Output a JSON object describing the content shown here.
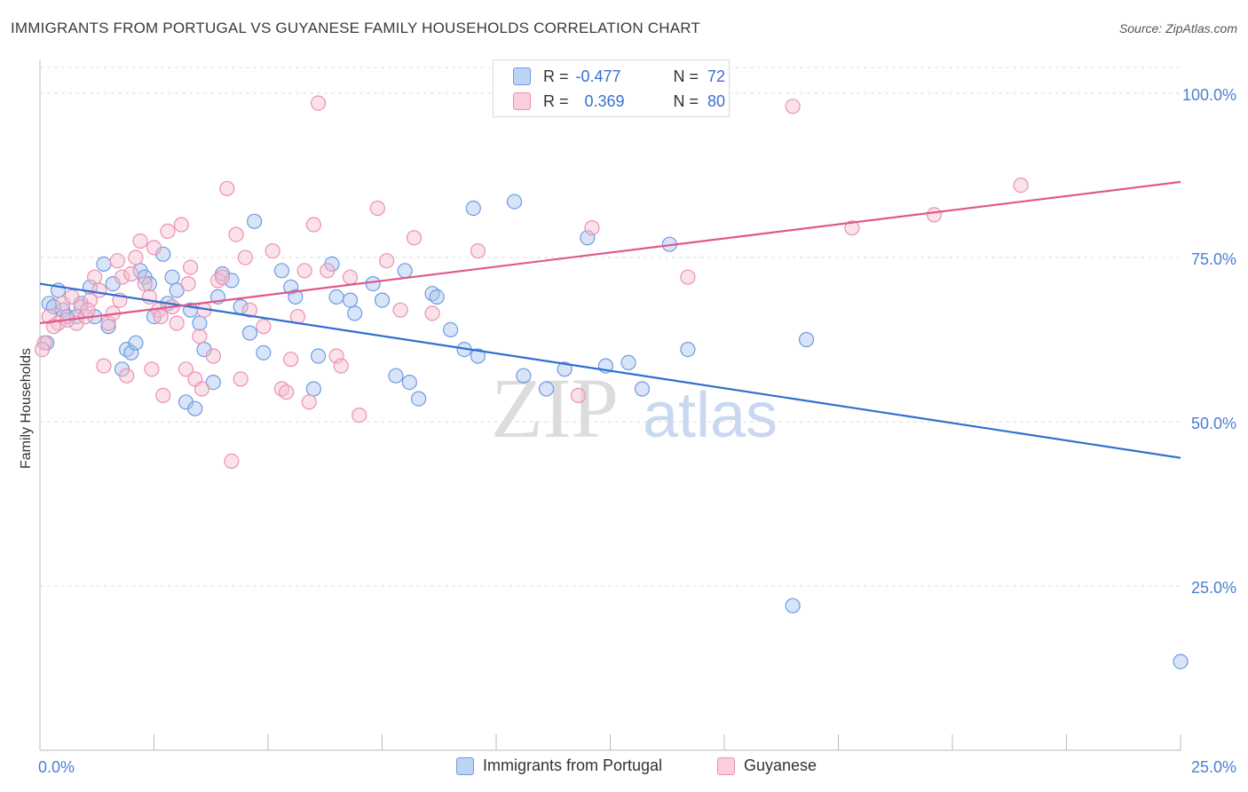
{
  "header": {
    "title": "IMMIGRANTS FROM PORTUGAL VS GUYANESE FAMILY HOUSEHOLDS CORRELATION CHART",
    "source": "Source: ZipAtlas.com"
  },
  "watermark": {
    "zip": "ZIP",
    "atlas": "atlas"
  },
  "colors": {
    "blue_fill": "#a9c4ee",
    "blue_stroke": "#6f9be0",
    "blue_line": "#2f6fd0",
    "pink_fill": "#f6bcd0",
    "pink_stroke": "#e992b0",
    "pink_line": "#e0588a",
    "tick_label": "#4a7fd4",
    "grid": "#dddddd"
  },
  "legend": {
    "rows": [
      {
        "r_label": "R =",
        "r_value": "-0.477",
        "n_label": "N =",
        "n_value": "72"
      },
      {
        "r_label": "R =",
        "r_value": "0.369",
        "n_label": "N =",
        "n_value": "80"
      }
    ]
  },
  "bottom_legend": [
    "Immigrants from Portugal",
    "Guyanese"
  ],
  "chart_data": {
    "type": "scatter",
    "title": "IMMIGRANTS FROM PORTUGAL VS GUYANESE FAMILY HOUSEHOLDS CORRELATION CHART",
    "xlabel": "",
    "ylabel": "Family Households",
    "xlim": [
      0,
      25
    ],
    "ylim": [
      0,
      105
    ],
    "x_tick_labels": [
      "0.0%",
      "25.0%"
    ],
    "y_ticks": [
      25,
      50,
      75,
      100
    ],
    "y_tick_labels": [
      "25.0%",
      "50.0%",
      "75.0%",
      "100.0%"
    ],
    "grid": true,
    "legend_position": "top-center",
    "series": [
      {
        "name": "Immigrants from Portugal",
        "color": "#a9c4ee",
        "trend": {
          "x": [
            0,
            25
          ],
          "y": [
            71.0,
            44.5
          ]
        },
        "points": [
          [
            0.2,
            68
          ],
          [
            0.4,
            70
          ],
          [
            0.5,
            67
          ],
          [
            0.6,
            66
          ],
          [
            0.8,
            66
          ],
          [
            0.9,
            68
          ],
          [
            1.1,
            70.5
          ],
          [
            1.2,
            66
          ],
          [
            1.4,
            74
          ],
          [
            1.5,
            64.5
          ],
          [
            1.6,
            71
          ],
          [
            1.8,
            58
          ],
          [
            1.9,
            61
          ],
          [
            2.0,
            60.5
          ],
          [
            2.1,
            62
          ],
          [
            2.2,
            73
          ],
          [
            2.3,
            72
          ],
          [
            2.4,
            71
          ],
          [
            2.5,
            66
          ],
          [
            2.7,
            75.5
          ],
          [
            2.8,
            68
          ],
          [
            2.9,
            72
          ],
          [
            3.0,
            70
          ],
          [
            3.2,
            53
          ],
          [
            3.3,
            67
          ],
          [
            3.4,
            52
          ],
          [
            3.5,
            65
          ],
          [
            3.6,
            61
          ],
          [
            3.8,
            56
          ],
          [
            3.9,
            69
          ],
          [
            4.0,
            72.5
          ],
          [
            4.2,
            71.5
          ],
          [
            4.4,
            67.5
          ],
          [
            4.6,
            63.5
          ],
          [
            4.7,
            80.5
          ],
          [
            4.9,
            60.5
          ],
          [
            5.3,
            73
          ],
          [
            5.5,
            70.5
          ],
          [
            5.6,
            69
          ],
          [
            6.0,
            55
          ],
          [
            6.1,
            60
          ],
          [
            6.4,
            74
          ],
          [
            6.5,
            69
          ],
          [
            6.8,
            68.5
          ],
          [
            6.9,
            66.5
          ],
          [
            7.3,
            71
          ],
          [
            7.5,
            68.5
          ],
          [
            7.8,
            57
          ],
          [
            8.0,
            73
          ],
          [
            8.1,
            56
          ],
          [
            8.3,
            53.5
          ],
          [
            8.6,
            69.5
          ],
          [
            8.7,
            69
          ],
          [
            9.0,
            64
          ],
          [
            9.3,
            61
          ],
          [
            9.5,
            82.5
          ],
          [
            9.6,
            60
          ],
          [
            10.4,
            83.5
          ],
          [
            10.6,
            57
          ],
          [
            11.1,
            55
          ],
          [
            11.5,
            58
          ],
          [
            12.0,
            78
          ],
          [
            12.4,
            58.5
          ],
          [
            12.9,
            59
          ],
          [
            13.2,
            55
          ],
          [
            13.8,
            77
          ],
          [
            14.2,
            61
          ],
          [
            16.8,
            62.5
          ],
          [
            16.5,
            22
          ],
          [
            25.0,
            13.5
          ],
          [
            0.15,
            62
          ],
          [
            0.3,
            67.5
          ]
        ]
      },
      {
        "name": "Guyanese",
        "color": "#f6bcd0",
        "trend": {
          "x": [
            0,
            25
          ],
          "y": [
            65.0,
            86.5
          ]
        },
        "points": [
          [
            0.1,
            62
          ],
          [
            0.2,
            66
          ],
          [
            0.4,
            65
          ],
          [
            0.5,
            68
          ],
          [
            0.7,
            69
          ],
          [
            0.8,
            65
          ],
          [
            0.9,
            67.5
          ],
          [
            1.0,
            66
          ],
          [
            1.1,
            68.5
          ],
          [
            1.2,
            72
          ],
          [
            1.3,
            70
          ],
          [
            1.4,
            58.5
          ],
          [
            1.5,
            65
          ],
          [
            1.6,
            66.5
          ],
          [
            1.7,
            74.5
          ],
          [
            1.8,
            72
          ],
          [
            1.9,
            57
          ],
          [
            2.0,
            72.5
          ],
          [
            2.1,
            75
          ],
          [
            2.2,
            77.5
          ],
          [
            2.3,
            71
          ],
          [
            2.4,
            69
          ],
          [
            2.5,
            76.5
          ],
          [
            2.6,
            67
          ],
          [
            2.7,
            54
          ],
          [
            2.8,
            79
          ],
          [
            2.9,
            67.5
          ],
          [
            3.0,
            65
          ],
          [
            3.1,
            80
          ],
          [
            3.2,
            58
          ],
          [
            3.3,
            73.5
          ],
          [
            3.4,
            56.5
          ],
          [
            3.5,
            63
          ],
          [
            3.6,
            67
          ],
          [
            3.8,
            60
          ],
          [
            3.9,
            71.5
          ],
          [
            4.0,
            72
          ],
          [
            4.1,
            85.5
          ],
          [
            4.2,
            44
          ],
          [
            4.3,
            78.5
          ],
          [
            4.4,
            56.5
          ],
          [
            4.5,
            75
          ],
          [
            4.6,
            67
          ],
          [
            4.9,
            64.5
          ],
          [
            5.1,
            76
          ],
          [
            5.3,
            55
          ],
          [
            5.4,
            54.5
          ],
          [
            5.5,
            59.5
          ],
          [
            5.8,
            73
          ],
          [
            5.9,
            53
          ],
          [
            6.0,
            80
          ],
          [
            6.1,
            98.5
          ],
          [
            6.3,
            73
          ],
          [
            6.5,
            60
          ],
          [
            6.6,
            58.5
          ],
          [
            6.8,
            72
          ],
          [
            7.0,
            51
          ],
          [
            7.4,
            82.5
          ],
          [
            7.6,
            74.5
          ],
          [
            7.9,
            67
          ],
          [
            8.2,
            78
          ],
          [
            9.6,
            76
          ],
          [
            11.8,
            54
          ],
          [
            12.1,
            79.5
          ],
          [
            14.2,
            72
          ],
          [
            16.5,
            98
          ],
          [
            17.8,
            79.5
          ],
          [
            19.6,
            81.5
          ],
          [
            21.5,
            86
          ],
          [
            0.05,
            61
          ],
          [
            0.3,
            64.5
          ],
          [
            0.6,
            65.5
          ],
          [
            1.05,
            67
          ],
          [
            1.75,
            68.5
          ],
          [
            2.45,
            58
          ],
          [
            2.65,
            66
          ],
          [
            3.25,
            71
          ],
          [
            3.55,
            55
          ],
          [
            5.65,
            66
          ],
          [
            8.6,
            66.5
          ]
        ]
      }
    ]
  }
}
